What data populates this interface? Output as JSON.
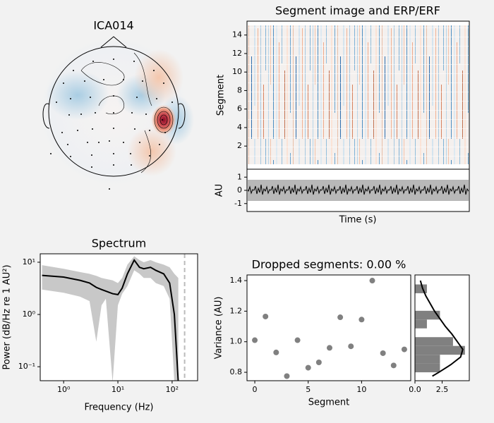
{
  "topomap": {
    "title": "ICA014"
  },
  "segment_image": {
    "title": "Segment image and ERP/ERF",
    "ylabel": "Segment",
    "ylim": [
      -0.5,
      15.5
    ],
    "yticks": [
      2,
      4,
      6,
      8,
      10,
      12,
      14
    ]
  },
  "erp": {
    "ylabel": "AU",
    "xlabel": "Time (s)",
    "ylim": [
      -1.6,
      1.6
    ],
    "yticks": [
      -1,
      0,
      1
    ]
  },
  "chart_data": [
    {
      "type": "line",
      "title": "Spectrum",
      "xlabel": "Frequency (Hz)",
      "ylabel": "Power (dB/Hz re 1 AU²)",
      "log_x": true,
      "log_y": true,
      "xlim": [
        0.37,
        295
      ],
      "ylim": [
        0.054,
        14.5
      ],
      "xticks": [
        {
          "value": 1,
          "label": "10⁰"
        },
        {
          "value": 10,
          "label": "10¹"
        },
        {
          "value": 100,
          "label": "10²"
        }
      ],
      "yticks": [
        {
          "value": 0.1,
          "label": "10⁻¹"
        },
        {
          "value": 1,
          "label": "10⁰"
        },
        {
          "value": 10,
          "label": "10¹"
        }
      ],
      "x": [
        0.4,
        1,
        2,
        3,
        4,
        5,
        6,
        8,
        10,
        12,
        15,
        20,
        25,
        30,
        40,
        50,
        70,
        90,
        110,
        130,
        150
      ],
      "values": [
        5.6,
        5.2,
        4.5,
        4.0,
        3.3,
        3.0,
        2.8,
        2.5,
        2.4,
        3.2,
        6,
        11,
        8,
        7.5,
        8,
        7,
        6,
        4,
        1,
        0.05,
        null
      ],
      "lower": [
        3.0,
        2.6,
        2.2,
        1.8,
        0.3,
        1.5,
        2.0,
        0.05,
        1.5,
        2.5,
        3.5,
        7,
        6,
        5,
        5,
        4,
        3.5,
        2,
        0.05,
        0.05,
        null
      ],
      "upper": [
        8.8,
        7.5,
        6.5,
        6,
        5.5,
        5,
        4.8,
        4.5,
        4,
        5,
        9,
        13,
        11,
        10,
        11,
        10,
        9,
        8,
        6,
        5,
        null
      ],
      "color": "#000000",
      "band_color": "#c8c8c8",
      "vline": 170
    },
    {
      "type": "scatter",
      "title": "Dropped segments: 0.00 %",
      "xlabel": "Segment",
      "ylabel": "Variance (AU)",
      "xlim": [
        -0.73,
        14.6
      ],
      "ylim": [
        0.745,
        1.437
      ],
      "xticks": [
        0,
        5,
        10
      ],
      "yticks": [
        0.8,
        {
          "value": 1.0,
          "label": "1.0"
        },
        1.2,
        1.4
      ],
      "x": [
        0,
        1,
        2,
        3,
        4,
        5,
        6,
        7,
        8,
        9,
        10,
        11,
        12,
        13,
        14
      ],
      "values": [
        1.01,
        1.165,
        0.93,
        0.775,
        1.01,
        0.83,
        0.865,
        0.96,
        1.16,
        0.97,
        1.145,
        1.4,
        0.925,
        0.845,
        0.95
      ],
      "color": "#808080"
    },
    {
      "type": "histogram",
      "orientation": "horizontal",
      "xlim": [
        0,
        5
      ],
      "ylim": [
        0.745,
        1.437
      ],
      "xticks": [
        {
          "value": 0,
          "label": "0.0"
        },
        2.5
      ],
      "bins": [
        0.8,
        0.8575,
        0.915,
        0.9725,
        1.03,
        1.0875,
        1.145,
        1.2025,
        1.26,
        1.3175,
        1.375
      ],
      "values": [
        2.3,
        2.3,
        4.6,
        3.5,
        0,
        1.1,
        2.3,
        0,
        0,
        1.1
      ],
      "color": "#808080",
      "kde": {
        "y": [
          1.4,
          1.35,
          1.3,
          1.25,
          1.2,
          1.15,
          1.1,
          1.05,
          1.0,
          0.95,
          0.9,
          0.85,
          0.8,
          0.775
        ],
        "density": [
          0.5,
          0.7,
          1.0,
          1.4,
          1.8,
          2.3,
          2.8,
          3.4,
          3.9,
          4.4,
          4.2,
          3.3,
          2.2,
          1.6
        ],
        "color": "#000000"
      }
    }
  ]
}
